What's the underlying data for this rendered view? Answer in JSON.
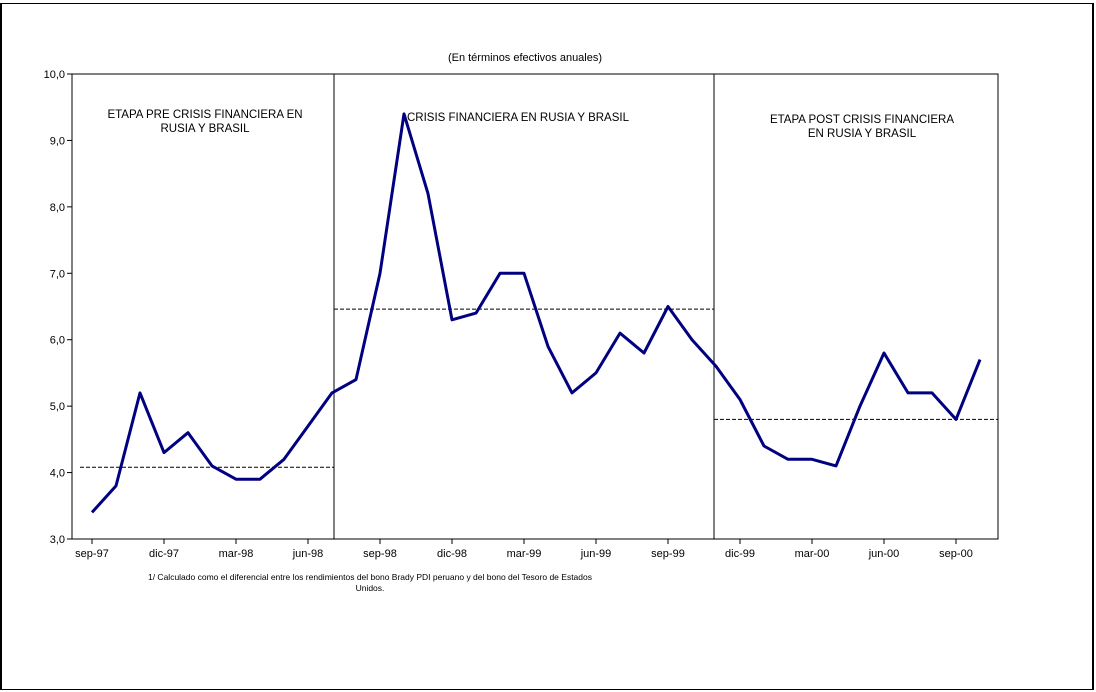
{
  "chart_data": {
    "type": "line",
    "subtitle": "(En términos efectivos anuales)",
    "ylim": [
      3.0,
      10.0
    ],
    "y_ticks": [
      "3,0",
      "4,0",
      "5,0",
      "6,0",
      "7,0",
      "8,0",
      "9,0",
      "10,0"
    ],
    "x_tick_labels": [
      "sep-97",
      "dic-97",
      "mar-98",
      "jun-98",
      "sep-98",
      "dic-98",
      "mar-99",
      "jun-99",
      "sep-99",
      "dic-99",
      "mar-00",
      "jun-00",
      "sep-00"
    ],
    "grid": false,
    "series": [
      {
        "color": "#000080",
        "values": [
          3.4,
          3.8,
          5.2,
          4.3,
          4.6,
          4.1,
          3.9,
          3.9,
          4.2,
          4.7,
          5.2,
          5.4,
          7.0,
          9.4,
          8.2,
          6.3,
          6.4,
          7.0,
          7.0,
          5.9,
          5.2,
          5.5,
          6.1,
          5.8,
          6.5,
          6.0,
          5.6,
          5.1,
          4.4,
          4.2,
          4.2,
          4.1,
          5.0,
          5.8,
          5.2,
          5.2,
          4.8,
          5.7
        ]
      }
    ],
    "periods": [
      {
        "label_lines": [
          "ETAPA PRE CRISIS FINANCIERA EN",
          "RUSIA Y BRASIL"
        ],
        "average": 4.08
      },
      {
        "label_lines": [
          "CRISIS FINANCIERA EN RUSIA Y BRASIL"
        ],
        "average": 6.46
      },
      {
        "label_lines": [
          "ETAPA POST CRISIS FINANCIERA",
          "EN RUSIA Y BRASIL"
        ],
        "average": 4.8
      }
    ]
  },
  "footnote_line1": "1/ Calculado como el diferencial entre los rendimientos del bono Brady PDI peruano y del bono del Tesoro de Estados",
  "footnote_line2": "Unidos."
}
